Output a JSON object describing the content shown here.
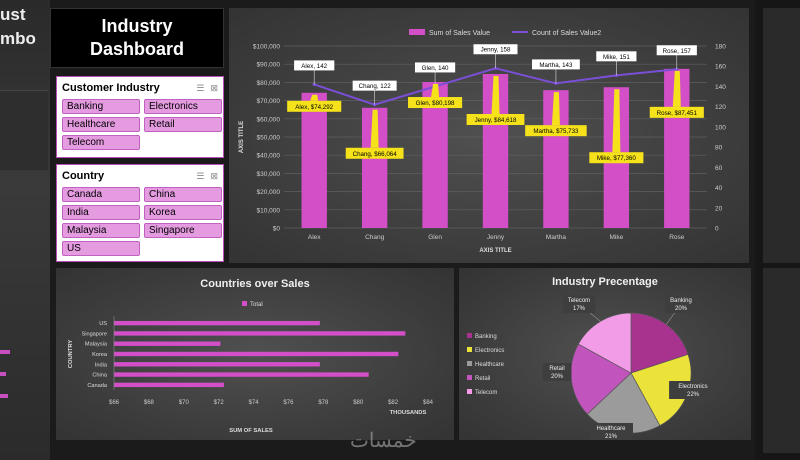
{
  "dashboard": {
    "title": "Industry\nDashboard"
  },
  "ghost": {
    "left_text_1": "ust",
    "left_text_2": "mbo"
  },
  "slicers": {
    "industry": {
      "title": "Customer Industry",
      "items": [
        "Banking",
        "Electronics",
        "Healthcare",
        "Retail",
        "Telecom"
      ]
    },
    "country": {
      "title": "Country",
      "items": [
        "Canada",
        "China",
        "India",
        "Korea",
        "Malaysia",
        "Singapore",
        "US"
      ]
    }
  },
  "chart_data": [
    {
      "type": "bar",
      "title": "",
      "legend": [
        "Sum of Sales Value",
        "Count of Sales Value2"
      ],
      "legend_position": "top",
      "xlabel": "AXIS TITLE",
      "ylabel": "AXIS TITLE",
      "categories": [
        "Alex",
        "Chang",
        "Glen",
        "Jenny",
        "Martha",
        "Mike",
        "Rose"
      ],
      "series": [
        {
          "name": "Sum of Sales Value",
          "type": "bar",
          "axis": "left",
          "values": [
            74292,
            66064,
            80198,
            84618,
            75733,
            77360,
            87451
          ],
          "labels": [
            "Alex, $74,292",
            "Chang, $66,064",
            "Glen, $80,198",
            "Jenny, $84,618",
            "Martha, $75,733",
            "Mike, $77,360",
            "Rose, $87,451"
          ],
          "color": "#d24fc8"
        },
        {
          "name": "Count of Sales Value2",
          "type": "line",
          "axis": "right",
          "values": [
            142,
            122,
            140,
            158,
            143,
            151,
            157
          ],
          "labels": [
            "Alex, 142",
            "Chang, 122",
            "Glen, 140",
            "Jenny, 158",
            "Martha, 143",
            "Mike, 151",
            "Rose, 157"
          ],
          "color": "#7a4fd6"
        }
      ],
      "y_left_ticks": [
        "$0",
        "$10,000",
        "$20,000",
        "$30,000",
        "$40,000",
        "$50,000",
        "$60,000",
        "$70,000",
        "$80,000",
        "$90,000",
        "$100,000"
      ],
      "ylim_left": [
        0,
        100000
      ],
      "y_right_ticks": [
        "0",
        "20",
        "40",
        "60",
        "80",
        "100",
        "120",
        "140",
        "160",
        "180"
      ],
      "ylim_right": [
        0,
        180
      ],
      "grid": true
    },
    {
      "type": "bar",
      "orientation": "horizontal",
      "title": "Countries over Sales",
      "legend": [
        "Total"
      ],
      "xlabel": "SUM OF SALES",
      "x_unit_label": "THOUSANDS",
      "ylabel": "COUNTRY",
      "categories": [
        "US",
        "Singapore",
        "Malaysia",
        "Korea",
        "India",
        "China",
        "Canada"
      ],
      "values": [
        77.8,
        82.7,
        72.1,
        82.3,
        77.8,
        80.6,
        72.3
      ],
      "xlim": [
        66,
        84
      ],
      "x_ticks": [
        "$66",
        "$68",
        "$70",
        "$72",
        "$74",
        "$76",
        "$78",
        "$80",
        "$82",
        "$84"
      ],
      "color": "#d24fc8"
    },
    {
      "type": "pie",
      "title": "Industry Precentage",
      "categories": [
        "Banking",
        "Electronics",
        "Healthcare",
        "Retail",
        "Telecom"
      ],
      "values": [
        20,
        22,
        21,
        20,
        17
      ],
      "labels": [
        "Banking\n20%",
        "Electronics\n22%",
        "Healthcare\n21%",
        "Retail\n20%",
        "Telecom\n17%"
      ],
      "colors": [
        "#a8338f",
        "#ebe33a",
        "#9b9b9b",
        "#c155bd",
        "#f29be6"
      ],
      "legend_position": "left"
    }
  ],
  "watermark": "خمسات"
}
